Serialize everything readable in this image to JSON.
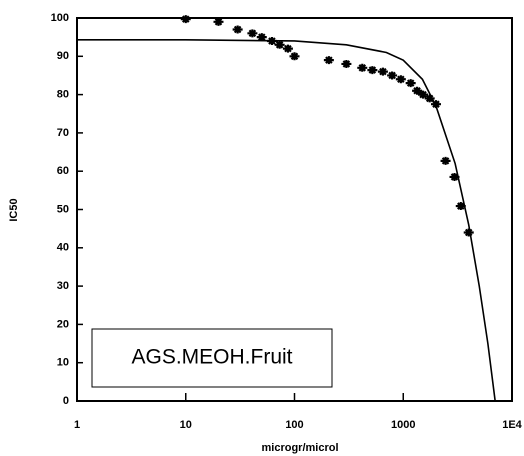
{
  "chart_data": {
    "type": "scatter",
    "xlabel": "microgr/microl",
    "ylabel": "IC50",
    "annotation": "AGS.MEOH.Fruit",
    "xscale": "log",
    "xlim": [
      1,
      10000
    ],
    "xticks": [
      1,
      10,
      100,
      1000,
      {
        "value": 10000,
        "label": "1E4"
      }
    ],
    "ylim": [
      0,
      100
    ],
    "yticks": [
      0,
      10,
      20,
      30,
      40,
      50,
      60,
      70,
      80,
      90,
      100
    ],
    "series": [
      {
        "type": "scatter",
        "color": "#000000",
        "x": [
          10,
          20,
          30,
          41,
          50,
          62,
          73,
          87,
          100,
          207,
          300,
          420,
          520,
          650,
          790,
          950,
          1170,
          1340,
          1520,
          1750,
          2000,
          2450,
          2960,
          3380,
          4000
        ],
        "values": [
          99.7,
          99,
          97,
          96,
          95,
          94,
          93,
          92,
          90,
          89,
          88,
          87,
          86.4,
          86,
          85,
          84,
          83,
          81,
          80,
          79,
          77.5,
          62.7,
          58.5,
          50.9,
          44
        ]
      },
      {
        "type": "line",
        "color": "#000000",
        "x": [
          1,
          10,
          100,
          300,
          700,
          1000,
          1500,
          2000,
          3000,
          4000,
          5000,
          6000,
          7000
        ],
        "values": [
          94.3,
          94.3,
          94,
          93,
          91,
          89,
          84,
          77,
          62,
          46,
          30,
          15,
          0
        ]
      }
    ]
  }
}
